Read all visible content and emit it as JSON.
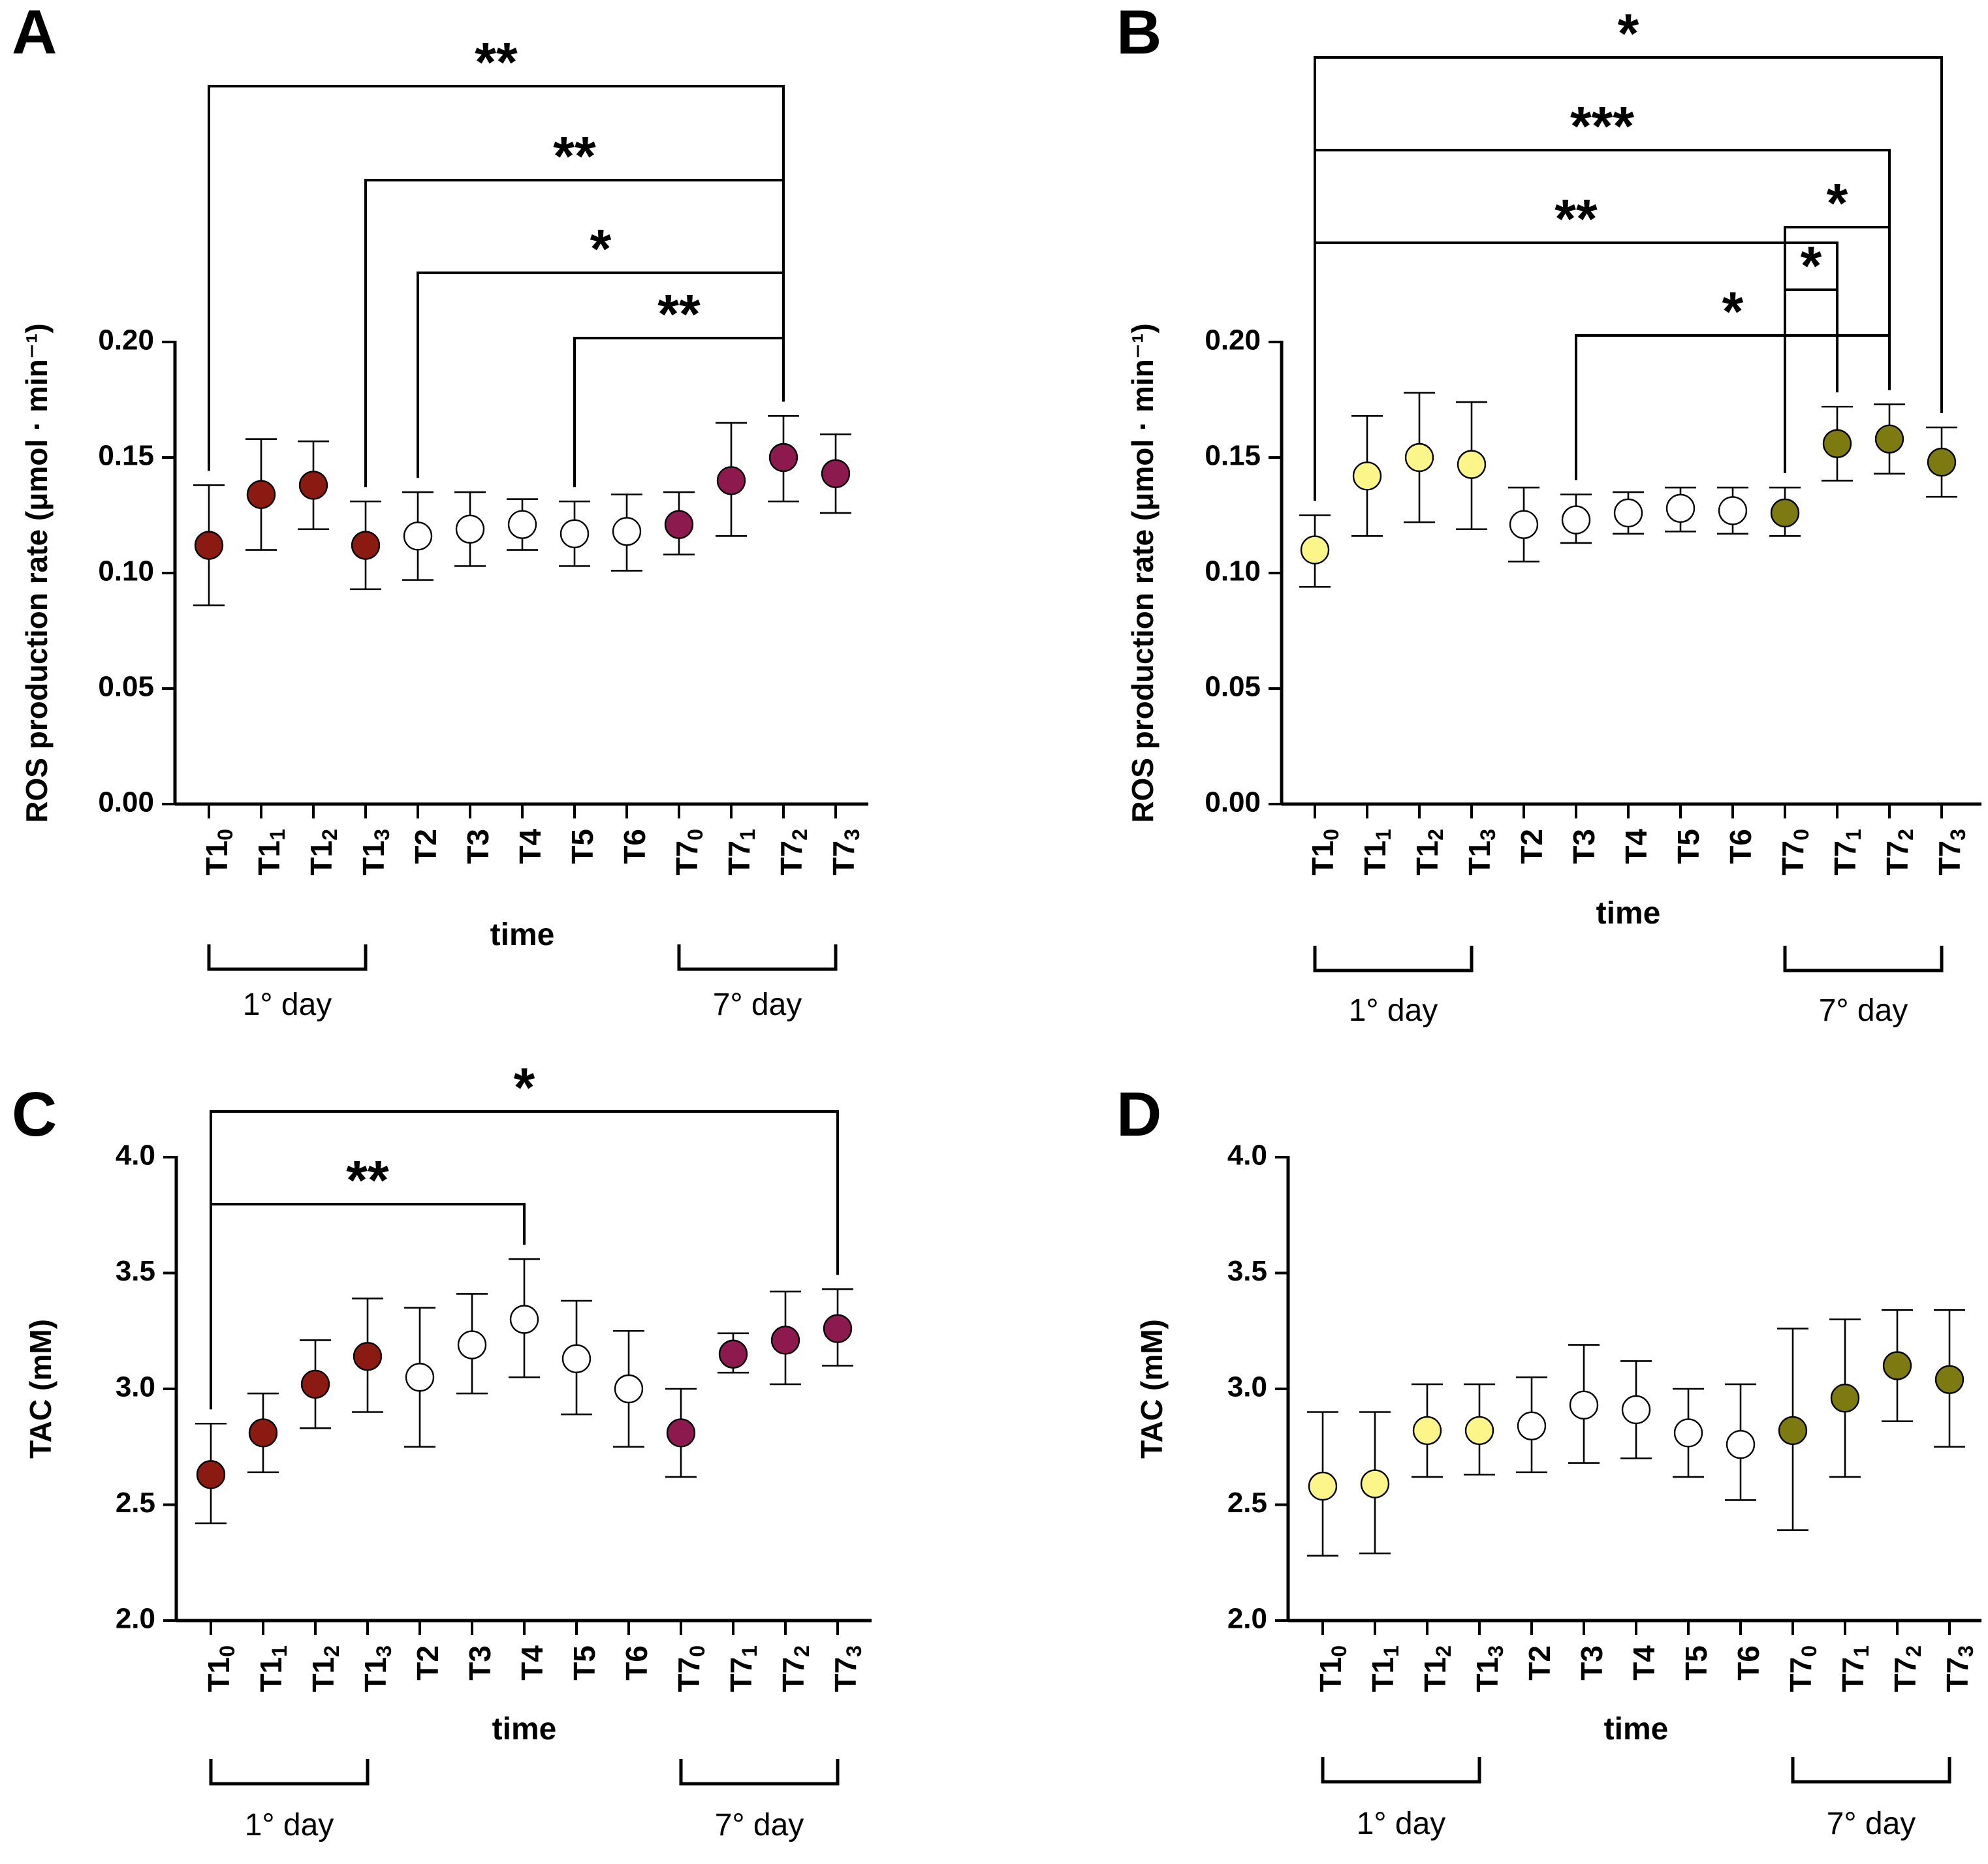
{
  "chart_data": [
    {
      "panel": "A",
      "type": "scatter",
      "ylabel": "ROS production rate (μmol · min⁻¹)",
      "xlabel": "time",
      "ylim": [
        0,
        0.2
      ],
      "yticks": [
        "0.00",
        "0.05",
        "0.10",
        "0.15",
        "0.20"
      ],
      "categories": [
        "T1_0",
        "T1_1",
        "T1_2",
        "T1_3",
        "T2",
        "T3",
        "T4",
        "T5",
        "T6",
        "T7_0",
        "T7_1",
        "T7_2",
        "T7_3"
      ],
      "values": [
        0.112,
        0.134,
        0.138,
        0.112,
        0.116,
        0.119,
        0.121,
        0.117,
        0.118,
        0.121,
        0.14,
        0.15,
        0.143
      ],
      "err_low": [
        0.086,
        0.11,
        0.119,
        0.093,
        0.097,
        0.103,
        0.11,
        0.103,
        0.101,
        0.108,
        0.116,
        0.131,
        0.126
      ],
      "err_high": [
        0.138,
        0.158,
        0.157,
        0.131,
        0.135,
        0.135,
        0.132,
        0.131,
        0.134,
        0.135,
        0.165,
        0.168,
        0.16
      ],
      "colors": [
        "#8b1a12",
        "#8b1a12",
        "#8b1a12",
        "#8b1a12",
        "#ffffff",
        "#ffffff",
        "#ffffff",
        "#ffffff",
        "#ffffff",
        "#8c1a4f",
        "#8c1a4f",
        "#8c1a4f",
        "#8c1a4f"
      ],
      "groups": [
        {
          "label": "1° day",
          "from": 0,
          "to": 3
        },
        {
          "label": "7° day",
          "from": 9,
          "to": 12
        }
      ],
      "significance": [
        {
          "from": 0,
          "to": 11,
          "stars": "**"
        },
        {
          "from": 3,
          "to": 11,
          "stars": "**"
        },
        {
          "from": 4,
          "to": 11,
          "stars": "*"
        },
        {
          "from": 7,
          "to": 11,
          "stars": "**"
        }
      ]
    },
    {
      "panel": "B",
      "type": "scatter",
      "ylabel": "ROS production rate (μmol · min⁻¹)",
      "xlabel": "time",
      "ylim": [
        0,
        0.2
      ],
      "yticks": [
        "0.00",
        "0.05",
        "0.10",
        "0.15",
        "0.20"
      ],
      "categories": [
        "T1_0",
        "T1_1",
        "T1_2",
        "T1_3",
        "T2",
        "T3",
        "T4",
        "T5",
        "T6",
        "T7_0",
        "T7_1",
        "T7_2",
        "T7_3"
      ],
      "values": [
        0.11,
        0.142,
        0.15,
        0.147,
        0.121,
        0.123,
        0.126,
        0.128,
        0.127,
        0.126,
        0.156,
        0.158,
        0.148
      ],
      "err_low": [
        0.094,
        0.116,
        0.122,
        0.119,
        0.105,
        0.113,
        0.117,
        0.118,
        0.117,
        0.116,
        0.14,
        0.143,
        0.133
      ],
      "err_high": [
        0.125,
        0.168,
        0.178,
        0.174,
        0.137,
        0.134,
        0.135,
        0.137,
        0.137,
        0.137,
        0.172,
        0.173,
        0.163
      ],
      "colors": [
        "#fcf58a",
        "#fcf58a",
        "#fcf58a",
        "#fcf58a",
        "#ffffff",
        "#ffffff",
        "#ffffff",
        "#ffffff",
        "#ffffff",
        "#7d7a12",
        "#7d7a12",
        "#7d7a12",
        "#7d7a12"
      ],
      "groups": [
        {
          "label": "1° day",
          "from": 0,
          "to": 3
        },
        {
          "label": "7° day",
          "from": 9,
          "to": 12
        }
      ],
      "significance": [
        {
          "from": 0,
          "to": 12,
          "stars": "*"
        },
        {
          "from": 0,
          "to": 11,
          "stars": "***"
        },
        {
          "from": 0,
          "to": 10,
          "stars": "**"
        },
        {
          "from": 9,
          "to": 11,
          "stars": "*"
        },
        {
          "from": 9,
          "to": 10,
          "stars": "*"
        },
        {
          "from": 5,
          "to": 11,
          "stars": "*"
        }
      ]
    },
    {
      "panel": "C",
      "type": "scatter",
      "ylabel": "TAC (mM)",
      "xlabel": "time",
      "ylim": [
        2.0,
        4.0
      ],
      "yticks": [
        "2.0",
        "2.5",
        "3.0",
        "3.5",
        "4.0"
      ],
      "categories": [
        "T1_0",
        "T1_1",
        "T1_2",
        "T1_3",
        "T2",
        "T3",
        "T4",
        "T5",
        "T6",
        "T7_0",
        "T7_1",
        "T7_2",
        "T7_3"
      ],
      "values": [
        2.63,
        2.81,
        3.02,
        3.14,
        3.05,
        3.19,
        3.3,
        3.13,
        3.0,
        2.81,
        3.15,
        3.21,
        3.26
      ],
      "err_low": [
        2.42,
        2.64,
        2.83,
        2.9,
        2.75,
        2.98,
        3.05,
        2.89,
        2.75,
        2.62,
        3.07,
        3.02,
        3.1
      ],
      "err_high": [
        2.85,
        2.98,
        3.21,
        3.39,
        3.35,
        3.41,
        3.56,
        3.38,
        3.25,
        3.0,
        3.24,
        3.42,
        3.43
      ],
      "colors": [
        "#8b1a12",
        "#8b1a12",
        "#8b1a12",
        "#8b1a12",
        "#ffffff",
        "#ffffff",
        "#ffffff",
        "#ffffff",
        "#ffffff",
        "#8c1a4f",
        "#8c1a4f",
        "#8c1a4f",
        "#8c1a4f"
      ],
      "groups": [
        {
          "label": "1° day",
          "from": 0,
          "to": 3
        },
        {
          "label": "7° day",
          "from": 9,
          "to": 12
        }
      ],
      "significance": [
        {
          "from": 0,
          "to": 12,
          "stars": "*"
        },
        {
          "from": 0,
          "to": 6,
          "stars": "**"
        }
      ]
    },
    {
      "panel": "D",
      "type": "scatter",
      "ylabel": "TAC (mM)",
      "xlabel": "time",
      "ylim": [
        2.0,
        4.0
      ],
      "yticks": [
        "2.0",
        "2.5",
        "3.0",
        "3.5",
        "4.0"
      ],
      "categories": [
        "T1_0",
        "T1_1",
        "T1_2",
        "T1_3",
        "T2",
        "T3",
        "T4",
        "T5",
        "T6",
        "T7_0",
        "T7_1",
        "T7_2",
        "T7_3"
      ],
      "values": [
        2.58,
        2.59,
        2.82,
        2.82,
        2.84,
        2.93,
        2.91,
        2.81,
        2.76,
        2.82,
        2.96,
        3.1,
        3.04
      ],
      "err_low": [
        2.28,
        2.29,
        2.62,
        2.63,
        2.64,
        2.68,
        2.7,
        2.62,
        2.52,
        2.39,
        2.62,
        2.86,
        2.75
      ],
      "err_high": [
        2.9,
        2.9,
        3.02,
        3.02,
        3.05,
        3.19,
        3.12,
        3.0,
        3.02,
        3.26,
        3.3,
        3.34,
        3.34
      ],
      "colors": [
        "#fcf58a",
        "#fcf58a",
        "#fcf58a",
        "#fcf58a",
        "#ffffff",
        "#ffffff",
        "#ffffff",
        "#ffffff",
        "#ffffff",
        "#7d7a12",
        "#7d7a12",
        "#7d7a12",
        "#7d7a12"
      ],
      "groups": [
        {
          "label": "1° day",
          "from": 0,
          "to": 3
        },
        {
          "label": "7° day",
          "from": 9,
          "to": 12
        }
      ],
      "significance": []
    }
  ]
}
